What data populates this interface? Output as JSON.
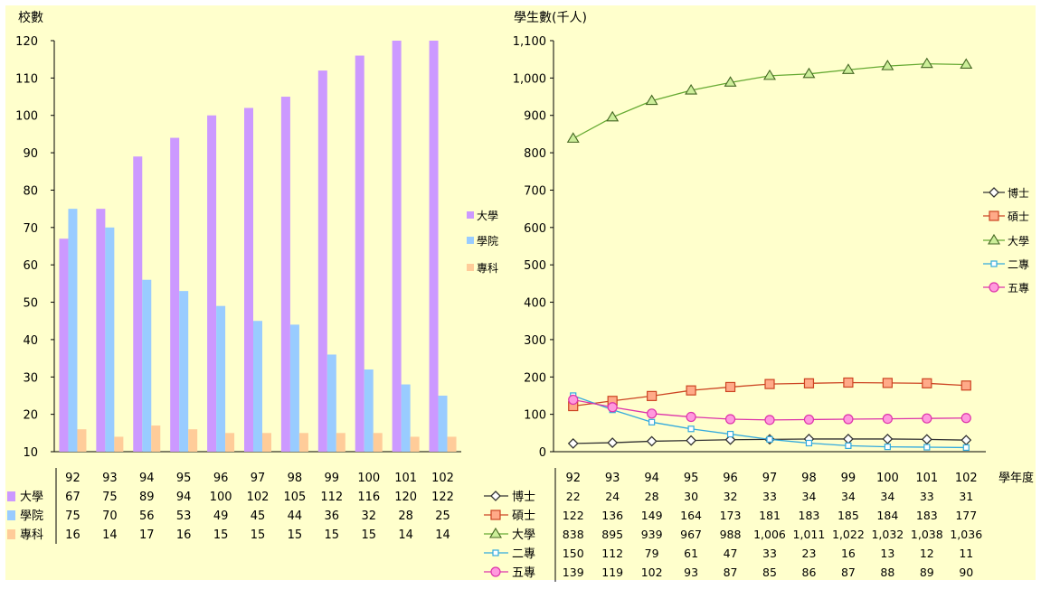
{
  "chart_data": [
    {
      "type": "bar",
      "ylabel": "校數",
      "ylim": [
        10,
        120
      ],
      "yticks": [
        10,
        20,
        30,
        40,
        50,
        60,
        70,
        80,
        90,
        100,
        110,
        120
      ],
      "categories": [
        "92",
        "93",
        "94",
        "95",
        "96",
        "97",
        "98",
        "99",
        "100",
        "101",
        "102"
      ],
      "series": [
        {
          "name": "大學",
          "color": "#cc99ff",
          "values": [
            67,
            75,
            89,
            94,
            100,
            102,
            105,
            112,
            116,
            120,
            122
          ]
        },
        {
          "name": "學院",
          "color": "#99ccff",
          "values": [
            75,
            70,
            56,
            53,
            49,
            45,
            44,
            36,
            32,
            28,
            25
          ]
        },
        {
          "name": "專科",
          "color": "#ffcc99",
          "values": [
            16,
            14,
            17,
            16,
            15,
            15,
            15,
            15,
            15,
            14,
            14
          ]
        }
      ],
      "legend_position": "right",
      "data_table": true
    },
    {
      "type": "line",
      "ylabel": "學生數(千人)",
      "xlabel": "學年度",
      "ylim": [
        0,
        1100
      ],
      "yticks": [
        0,
        100,
        200,
        300,
        400,
        500,
        600,
        700,
        800,
        900,
        1000,
        1100
      ],
      "ytick_labels": [
        "0",
        "100",
        "200",
        "300",
        "400",
        "500",
        "600",
        "700",
        "800",
        "900",
        "1,000",
        "1,100"
      ],
      "categories": [
        "92",
        "93",
        "94",
        "95",
        "96",
        "97",
        "98",
        "99",
        "100",
        "101",
        "102"
      ],
      "series": [
        {
          "name": "博士",
          "color": "#333333",
          "marker": "diamond",
          "values": [
            22,
            24,
            28,
            30,
            32,
            33,
            34,
            34,
            34,
            33,
            31
          ],
          "labels": [
            "22",
            "24",
            "28",
            "30",
            "32",
            "33",
            "34",
            "34",
            "34",
            "33",
            "31"
          ]
        },
        {
          "name": "碩士",
          "color": "#cc4422",
          "marker": "square",
          "values": [
            122,
            136,
            149,
            164,
            173,
            181,
            183,
            185,
            184,
            183,
            177
          ],
          "labels": [
            "122",
            "136",
            "149",
            "164",
            "173",
            "181",
            "183",
            "185",
            "184",
            "183",
            "177"
          ]
        },
        {
          "name": "大學",
          "color": "#66aa33",
          "marker": "triangle",
          "values": [
            838,
            895,
            939,
            967,
            988,
            1006,
            1011,
            1022,
            1032,
            1038,
            1036
          ],
          "labels": [
            "838",
            "895",
            "939",
            "967",
            "988",
            "1,006",
            "1,011",
            "1,022",
            "1,032",
            "1,038",
            "1,036"
          ]
        },
        {
          "name": "二專",
          "color": "#33aadd",
          "marker": "square-small",
          "values": [
            150,
            112,
            79,
            61,
            47,
            33,
            23,
            16,
            13,
            12,
            11
          ],
          "labels": [
            "150",
            "112",
            "79",
            "61",
            "47",
            "33",
            "23",
            "16",
            "13",
            "12",
            "11"
          ]
        },
        {
          "name": "五專",
          "color": "#dd33aa",
          "marker": "circle",
          "values": [
            139,
            119,
            102,
            93,
            87,
            85,
            86,
            87,
            88,
            89,
            90
          ],
          "labels": [
            "139",
            "119",
            "102",
            "93",
            "87",
            "85",
            "86",
            "87",
            "88",
            "89",
            "90"
          ]
        }
      ],
      "legend_position": "right",
      "data_table": true
    }
  ]
}
